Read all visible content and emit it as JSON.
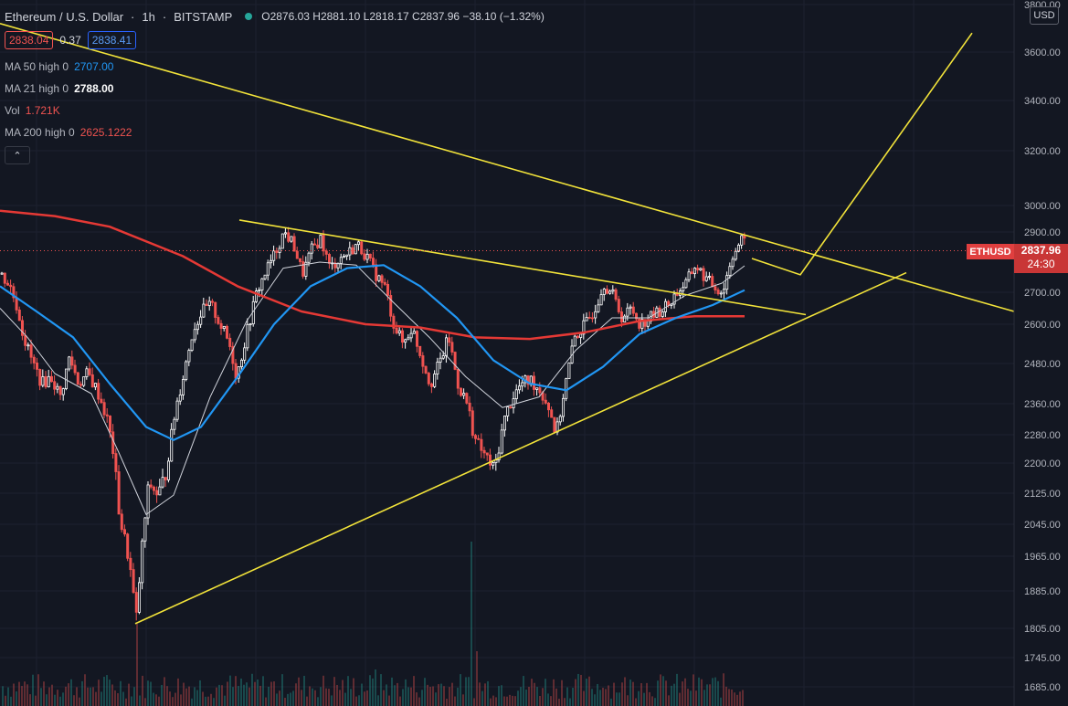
{
  "header": {
    "symbol": "Ethereum / U.S. Dollar",
    "interval": "1h",
    "exchange": "BITSTAMP",
    "ohlc": "O2876.03 H2881.10 L2818.17 C2837.96 −38.10 (−1.32%)"
  },
  "quote": {
    "sell": "2838.04",
    "spread": "0.37",
    "buy": "2838.41"
  },
  "legend": [
    {
      "label": "MA 50 high 0",
      "value": "2707.00",
      "color": "#2196f3"
    },
    {
      "label": "MA 21 high 0",
      "value": "2788.00",
      "color": "#ffffff"
    },
    {
      "label": "Vol",
      "value": "1.721K",
      "color": "#ef5350"
    },
    {
      "label": "MA 200 high 0",
      "value": "2625.1222",
      "color": "#ef5350"
    }
  ],
  "currency": "USD",
  "price_tag": {
    "symbol": "ETHUSD",
    "value": "2837.96",
    "countdown": "24:30"
  },
  "colors": {
    "up": "#ffffff",
    "down": "#ef5350",
    "ma50": "#2196f3",
    "ma21": "#d1d4dc",
    "ma200": "#e53935",
    "trendline": "#f2e33a",
    "volume": "#26a69a"
  },
  "chart_data": {
    "type": "candlestick",
    "yaxis_ticks": [
      "3800.00",
      "3600.00",
      "3400.00",
      "3200.00",
      "3000.00",
      "2900.00",
      "2700.00",
      "2600.00",
      "2480.00",
      "2360.00",
      "2280.00",
      "2200.00",
      "2125.00",
      "2045.00",
      "1965.00",
      "1885.00",
      "1805.00",
      "1745.00",
      "1685.00"
    ],
    "price_path": [
      [
        0,
        2760
      ],
      [
        10,
        2720
      ],
      [
        18,
        2650
      ],
      [
        25,
        2560
      ],
      [
        35,
        2480
      ],
      [
        45,
        2420
      ],
      [
        55,
        2440
      ],
      [
        65,
        2380
      ],
      [
        75,
        2500
      ],
      [
        85,
        2420
      ],
      [
        95,
        2450
      ],
      [
        105,
        2400
      ],
      [
        115,
        2330
      ],
      [
        122,
        2250
      ],
      [
        130,
        2060
      ],
      [
        140,
        1960
      ],
      [
        148,
        1820
      ],
      [
        155,
        2000
      ],
      [
        162,
        2150
      ],
      [
        172,
        2120
      ],
      [
        180,
        2170
      ],
      [
        190,
        2330
      ],
      [
        200,
        2450
      ],
      [
        210,
        2580
      ],
      [
        220,
        2640
      ],
      [
        230,
        2660
      ],
      [
        240,
        2600
      ],
      [
        250,
        2540
      ],
      [
        258,
        2440
      ],
      [
        268,
        2560
      ],
      [
        280,
        2700
      ],
      [
        290,
        2770
      ],
      [
        300,
        2830
      ],
      [
        310,
        2900
      ],
      [
        320,
        2860
      ],
      [
        330,
        2760
      ],
      [
        340,
        2840
      ],
      [
        350,
        2880
      ],
      [
        360,
        2780
      ],
      [
        370,
        2810
      ],
      [
        380,
        2830
      ],
      [
        390,
        2860
      ],
      [
        400,
        2820
      ],
      [
        410,
        2760
      ],
      [
        420,
        2720
      ],
      [
        430,
        2600
      ],
      [
        440,
        2540
      ],
      [
        450,
        2590
      ],
      [
        460,
        2500
      ],
      [
        470,
        2420
      ],
      [
        480,
        2480
      ],
      [
        490,
        2560
      ],
      [
        500,
        2420
      ],
      [
        510,
        2360
      ],
      [
        520,
        2260
      ],
      [
        530,
        2220
      ],
      [
        540,
        2180
      ],
      [
        550,
        2310
      ],
      [
        560,
        2380
      ],
      [
        570,
        2420
      ],
      [
        580,
        2430
      ],
      [
        590,
        2400
      ],
      [
        600,
        2350
      ],
      [
        608,
        2280
      ],
      [
        618,
        2420
      ],
      [
        628,
        2560
      ],
      [
        640,
        2600
      ],
      [
        650,
        2650
      ],
      [
        660,
        2730
      ],
      [
        670,
        2690
      ],
      [
        680,
        2620
      ],
      [
        690,
        2650
      ],
      [
        700,
        2600
      ],
      [
        710,
        2620
      ],
      [
        720,
        2640
      ],
      [
        730,
        2660
      ],
      [
        740,
        2700
      ],
      [
        750,
        2730
      ],
      [
        760,
        2790
      ],
      [
        770,
        2750
      ],
      [
        780,
        2720
      ],
      [
        790,
        2700
      ],
      [
        800,
        2820
      ],
      [
        812,
        2880
      ],
      [
        816,
        2838
      ]
    ],
    "ma200": [
      [
        0,
        2980
      ],
      [
        60,
        2960
      ],
      [
        120,
        2920
      ],
      [
        200,
        2820
      ],
      [
        260,
        2720
      ],
      [
        330,
        2640
      ],
      [
        400,
        2600
      ],
      [
        460,
        2590
      ],
      [
        520,
        2560
      ],
      [
        580,
        2555
      ],
      [
        640,
        2575
      ],
      [
        700,
        2610
      ],
      [
        760,
        2625
      ],
      [
        815,
        2625
      ]
    ],
    "ma50": [
      [
        0,
        2720
      ],
      [
        40,
        2640
      ],
      [
        80,
        2560
      ],
      [
        120,
        2420
      ],
      [
        160,
        2300
      ],
      [
        190,
        2265
      ],
      [
        220,
        2300
      ],
      [
        260,
        2440
      ],
      [
        300,
        2600
      ],
      [
        340,
        2720
      ],
      [
        380,
        2780
      ],
      [
        420,
        2790
      ],
      [
        460,
        2720
      ],
      [
        500,
        2620
      ],
      [
        540,
        2490
      ],
      [
        580,
        2420
      ],
      [
        620,
        2400
      ],
      [
        660,
        2470
      ],
      [
        700,
        2570
      ],
      [
        740,
        2620
      ],
      [
        780,
        2660
      ],
      [
        815,
        2707
      ]
    ],
    "ma21": [
      [
        0,
        2650
      ],
      [
        30,
        2560
      ],
      [
        60,
        2450
      ],
      [
        100,
        2390
      ],
      [
        130,
        2230
      ],
      [
        160,
        2070
      ],
      [
        190,
        2120
      ],
      [
        230,
        2380
      ],
      [
        270,
        2610
      ],
      [
        310,
        2780
      ],
      [
        350,
        2800
      ],
      [
        390,
        2790
      ],
      [
        430,
        2670
      ],
      [
        470,
        2560
      ],
      [
        510,
        2440
      ],
      [
        550,
        2350
      ],
      [
        590,
        2380
      ],
      [
        630,
        2520
      ],
      [
        670,
        2620
      ],
      [
        710,
        2620
      ],
      [
        750,
        2690
      ],
      [
        790,
        2730
      ],
      [
        815,
        2788
      ]
    ],
    "trendlines": [
      [
        [
          0,
          3720
        ],
        [
          1110,
          2640
        ]
      ],
      [
        [
          262,
          2945
        ],
        [
          882,
          2630
        ]
      ],
      [
        [
          148,
          1815
        ],
        [
          992,
          2765
        ]
      ],
      [
        [
          823,
          2812
        ],
        [
          876,
          2758
        ],
        [
          1064,
          3680
        ]
      ]
    ],
    "volume": [
      [
        150,
        90
      ],
      [
        410,
        40
      ],
      [
        515,
        180
      ],
      [
        520,
        60
      ],
      [
        640,
        30
      ],
      [
        660,
        20
      ],
      [
        700,
        25
      ]
    ]
  }
}
